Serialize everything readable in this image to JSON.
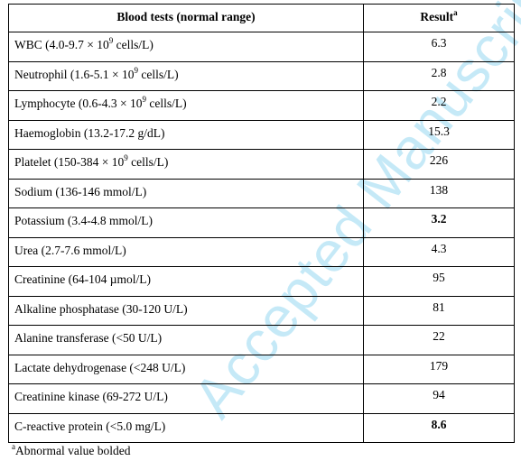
{
  "watermark": "Accepted Manuscript",
  "header": {
    "test": "Blood tests (normal range)",
    "result": "Result",
    "result_sup": "a"
  },
  "rows": [
    {
      "pre": "WBC  (4.0-9.7 × 10",
      "sup": "9",
      "post": " cells/L)",
      "value": "6.3",
      "bold": false
    },
    {
      "pre": "Neutrophil (1.6-5.1 × 10",
      "sup": "9",
      "post": " cells/L)",
      "value": "2.8",
      "bold": false
    },
    {
      "pre": "Lymphocyte (0.6-4.3 × 10",
      "sup": "9",
      "post": " cells/L)",
      "value": "2.2",
      "bold": false
    },
    {
      "pre": "Haemoglobin (13.2-17.2 g/dL)",
      "sup": "",
      "post": "",
      "value": "15.3",
      "bold": false
    },
    {
      "pre": "Platelet (150-384 × 10",
      "sup": "9",
      "post": " cells/L)",
      "value": "226",
      "bold": false
    },
    {
      "pre": "Sodium (136-146 mmol/L)",
      "sup": "",
      "post": "",
      "value": "138",
      "bold": false
    },
    {
      "pre": "Potassium (3.4-4.8 mmol/L)",
      "sup": "",
      "post": "",
      "value": "3.2",
      "bold": true
    },
    {
      "pre": "Urea (2.7-7.6 mmol/L)",
      "sup": "",
      "post": "",
      "value": "4.3",
      "bold": false
    },
    {
      "pre": "Creatinine (64-104 µmol/L)",
      "sup": "",
      "post": "",
      "value": "95",
      "bold": false
    },
    {
      "pre": "Alkaline phosphatase (30-120 U/L)",
      "sup": "",
      "post": "",
      "value": "81",
      "bold": false
    },
    {
      "pre": "Alanine transferase (<50 U/L)",
      "sup": "",
      "post": "",
      "value": "22",
      "bold": false
    },
    {
      "pre": "Lactate dehydrogenase (<248 U/L)",
      "sup": "",
      "post": "",
      "value": "179",
      "bold": false
    },
    {
      "pre": "Creatinine kinase (69-272 U/L)",
      "sup": "",
      "post": "",
      "value": "94",
      "bold": false
    },
    {
      "pre": "C-reactive protein (<5.0 mg/L)",
      "sup": "",
      "post": "",
      "value": "8.6",
      "bold": true
    }
  ],
  "footnote": {
    "sup": "a",
    "text": "Abnormal value bolded"
  }
}
